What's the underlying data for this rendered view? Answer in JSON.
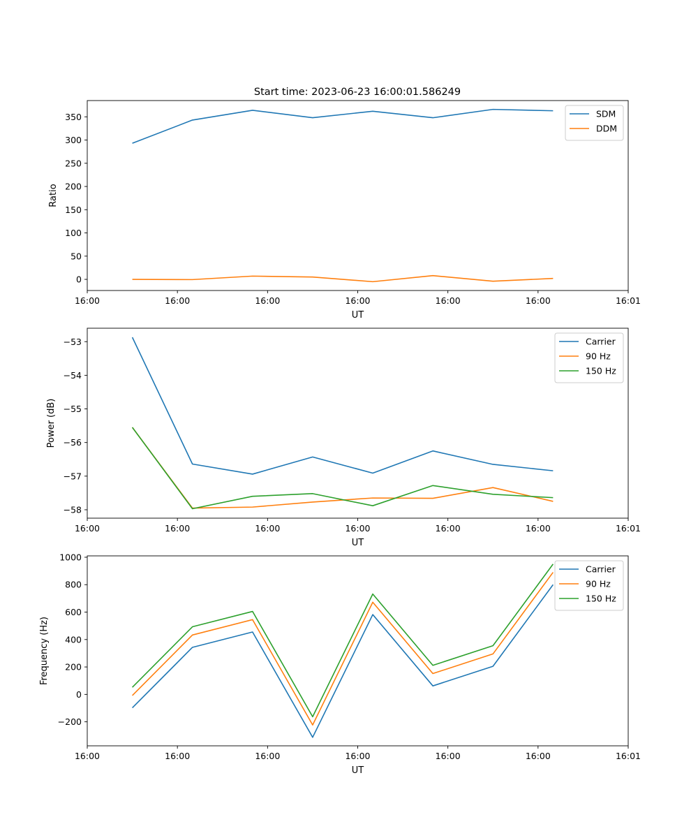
{
  "figure": {
    "title": "Start time: 2023-06-23 16:00:01.586249"
  },
  "chart_data": [
    {
      "type": "line",
      "title": "Start time: 2023-06-23 16:00:01.586249",
      "xlabel": "UT",
      "ylabel": "Ratio",
      "x_tick_labels": [
        "16:00",
        "16:00",
        "16:00",
        "16:00",
        "16:00",
        "16:00",
        "16:01"
      ],
      "x": [
        1,
        2,
        3,
        4,
        5,
        6,
        7,
        8
      ],
      "xlim": [
        0.25,
        9.25
      ],
      "yticks": [
        0,
        50,
        100,
        150,
        200,
        250,
        300,
        350
      ],
      "ylim": [
        -24,
        385
      ],
      "legend": "top-right",
      "series": [
        {
          "name": "SDM",
          "color": "#1f77b4",
          "values": [
            293,
            343,
            364,
            348,
            362,
            348,
            366,
            363
          ]
        },
        {
          "name": "DDM",
          "color": "#ff7f0e",
          "values": [
            0,
            -0.5,
            7,
            5,
            -5,
            8,
            -4,
            2
          ]
        }
      ]
    },
    {
      "type": "line",
      "title": "",
      "xlabel": "UT",
      "ylabel": "Power (dB)",
      "x_tick_labels": [
        "16:00",
        "16:00",
        "16:00",
        "16:00",
        "16:00",
        "16:00",
        "16:01"
      ],
      "x": [
        1,
        2,
        3,
        4,
        5,
        6,
        7,
        8
      ],
      "xlim": [
        0.25,
        9.25
      ],
      "yticks": [
        -58,
        -57,
        -56,
        -55,
        -54,
        -53
      ],
      "ytick_labels": [
        "−58",
        "−57",
        "−56",
        "−55",
        "−54",
        "−53"
      ],
      "ylim": [
        -58.25,
        -52.6
      ],
      "legend": "top-right",
      "series": [
        {
          "name": "Carrier",
          "color": "#1f77b4",
          "values": [
            -52.87,
            -56.64,
            -56.94,
            -56.43,
            -56.91,
            -56.25,
            -56.65,
            -56.84
          ]
        },
        {
          "name": "90 Hz",
          "color": "#ff7f0e",
          "values": [
            -55.55,
            -57.95,
            -57.92,
            -57.77,
            -57.65,
            -57.66,
            -57.34,
            -57.75
          ]
        },
        {
          "name": "150 Hz",
          "color": "#2ca02c",
          "values": [
            -55.55,
            -57.97,
            -57.6,
            -57.52,
            -57.88,
            -57.28,
            -57.54,
            -57.64
          ]
        }
      ]
    },
    {
      "type": "line",
      "title": "",
      "xlabel": "UT",
      "ylabel": "Frequency (Hz)",
      "x_tick_labels": [
        "16:00",
        "16:00",
        "16:00",
        "16:00",
        "16:00",
        "16:00",
        "16:01"
      ],
      "x": [
        1,
        2,
        3,
        4,
        5,
        6,
        7,
        8
      ],
      "xlim": [
        0.25,
        9.25
      ],
      "yticks": [
        -200,
        0,
        200,
        400,
        600,
        800,
        1000
      ],
      "ytick_labels": [
        "−200",
        "0",
        "200",
        "400",
        "600",
        "800",
        "1000"
      ],
      "ylim": [
        -375,
        1010
      ],
      "legend": "top-right",
      "series": [
        {
          "name": "Carrier",
          "color": "#1f77b4",
          "values": [
            -98,
            343,
            455,
            -313,
            582,
            62,
            205,
            800
          ]
        },
        {
          "name": "90 Hz",
          "color": "#ff7f0e",
          "values": [
            -8,
            433,
            545,
            -223,
            672,
            152,
            295,
            890
          ]
        },
        {
          "name": "150 Hz",
          "color": "#2ca02c",
          "values": [
            52,
            493,
            605,
            -163,
            732,
            212,
            355,
            950
          ]
        }
      ]
    }
  ]
}
